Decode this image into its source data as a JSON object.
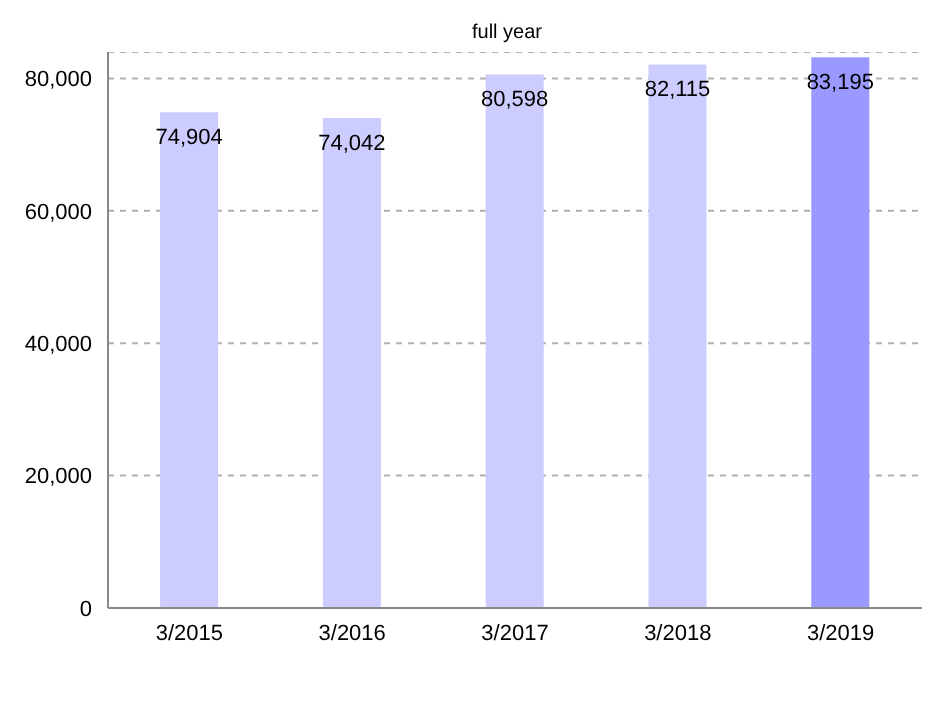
{
  "chart_data": {
    "type": "bar",
    "title": "full year",
    "categories": [
      "3/2015",
      "3/2016",
      "3/2017",
      "3/2018",
      "3/2019"
    ],
    "values": [
      74904,
      74042,
      80598,
      82115,
      83195
    ],
    "value_labels": [
      "74,904",
      "74,042",
      "80,598",
      "82,115",
      "83,195"
    ],
    "colors": [
      "#ccccff",
      "#ccccff",
      "#ccccff",
      "#ccccff",
      "#9999ff"
    ],
    "ylim": [
      0,
      84000
    ],
    "yticks": [
      0,
      {
        "value": 20000,
        "label": "20,000"
      },
      {
        "value": 40000,
        "label": "40,000"
      },
      {
        "value": 60000,
        "label": "60,000"
      },
      {
        "value": 80000,
        "label": "80,000"
      }
    ],
    "grid": "y"
  }
}
